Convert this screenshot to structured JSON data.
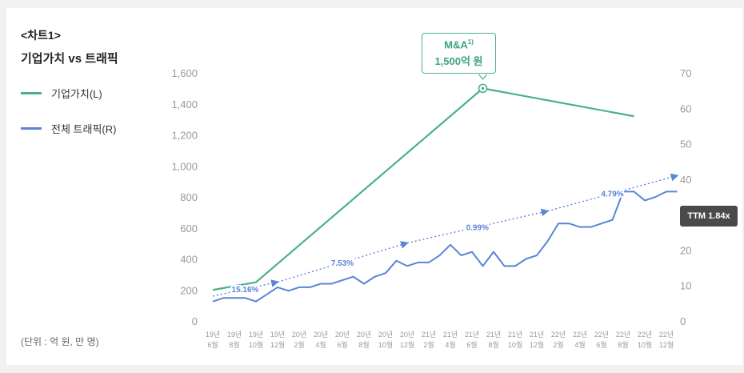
{
  "chart_data": {
    "type": "line",
    "chart_label": "<차트1>",
    "title": "기업가치 vs 트래픽",
    "unit_note": "(단위 : 억 원, 만 명)",
    "x_labels": [
      [
        "19년",
        "6월"
      ],
      [
        "19년",
        "8월"
      ],
      [
        "19년",
        "10월"
      ],
      [
        "19년",
        "12월"
      ],
      [
        "20년",
        "2월"
      ],
      [
        "20년",
        "4월"
      ],
      [
        "20년",
        "6월"
      ],
      [
        "20년",
        "8월"
      ],
      [
        "20년",
        "10월"
      ],
      [
        "20년",
        "12월"
      ],
      [
        "21년",
        "2월"
      ],
      [
        "21년",
        "4월"
      ],
      [
        "21년",
        "6월"
      ],
      [
        "21년",
        "8월"
      ],
      [
        "21년",
        "10월"
      ],
      [
        "21년",
        "12월"
      ],
      [
        "22년",
        "2월"
      ],
      [
        "22년",
        "4월"
      ],
      [
        "22년",
        "6월"
      ],
      [
        "22년",
        "8월"
      ],
      [
        "22년",
        "10월"
      ],
      [
        "22년",
        "12월"
      ]
    ],
    "left_axis": {
      "min": 0,
      "max": 1600,
      "ticks": [
        "0",
        "200",
        "400",
        "600",
        "800",
        "1,000",
        "1,200",
        "1,400",
        "1,600"
      ]
    },
    "right_axis": {
      "min": 0,
      "max": 70,
      "ticks": [
        "0",
        "10",
        "20",
        "30",
        "40",
        "50",
        "60",
        "70"
      ]
    },
    "series": [
      {
        "name": "기업가치(L)",
        "axis": "left",
        "color": "#4bb08a",
        "points": [
          [
            0,
            200
          ],
          [
            2,
            250
          ],
          [
            12.5,
            1500
          ],
          [
            19.5,
            1320
          ]
        ]
      },
      {
        "name": "전체 트래픽(R)",
        "axis": "right",
        "color": "#5b84d6",
        "points": [
          [
            0,
            5.5
          ],
          [
            0.5,
            6.5
          ],
          [
            1,
            6.5
          ],
          [
            1.5,
            6.5
          ],
          [
            2,
            5.5
          ],
          [
            2.5,
            7.5
          ],
          [
            3,
            9.5
          ],
          [
            3.5,
            8.5
          ],
          [
            4,
            9.5
          ],
          [
            4.5,
            9.5
          ],
          [
            5,
            10.5
          ],
          [
            5.5,
            10.5
          ],
          [
            6,
            11.5
          ],
          [
            6.5,
            12.5
          ],
          [
            7,
            10.5
          ],
          [
            7.5,
            12.5
          ],
          [
            8,
            13.5
          ],
          [
            8.5,
            17
          ],
          [
            9,
            15.5
          ],
          [
            9.5,
            16.5
          ],
          [
            10,
            16.5
          ],
          [
            10.5,
            18.5
          ],
          [
            11,
            21.5
          ],
          [
            11.5,
            18.5
          ],
          [
            12,
            19.5
          ],
          [
            12.5,
            15.5
          ],
          [
            13,
            19.5
          ],
          [
            13.5,
            15.5
          ],
          [
            14,
            15.5
          ],
          [
            14.5,
            17.5
          ],
          [
            15,
            18.5
          ],
          [
            15.5,
            22.5
          ],
          [
            16,
            27.5
          ],
          [
            16.5,
            27.5
          ],
          [
            17,
            26.5
          ],
          [
            17.5,
            26.5
          ],
          [
            18,
            27.5
          ],
          [
            18.5,
            28.5
          ],
          [
            19,
            36.5
          ],
          [
            19.5,
            36.5
          ],
          [
            20,
            34
          ],
          [
            20.5,
            35
          ],
          [
            21,
            36.5
          ],
          [
            21.5,
            36.5
          ]
        ]
      }
    ],
    "trend_segments": [
      {
        "label": "15.16%",
        "from": [
          0,
          7
        ],
        "to": [
          3,
          11
        ]
      },
      {
        "label": "7.53%",
        "from": [
          3,
          11
        ],
        "to": [
          9,
          22
        ]
      },
      {
        "label": "0.99%",
        "from": [
          9,
          22
        ],
        "to": [
          15.5,
          31
        ]
      },
      {
        "label": "4.79%",
        "from": [
          15.5,
          31
        ],
        "to": [
          21.5,
          41
        ]
      }
    ],
    "annotations": {
      "callout": {
        "label": "M&A",
        "footnote": "1)",
        "value": "1,500억 원",
        "at": [
          12.5,
          1500
        ]
      },
      "ttm_badge": "TTM 1.84x"
    },
    "colors": {
      "valuation": "#4bb08a",
      "traffic": "#5b84d6",
      "axis_text": "#999999",
      "badge_bg": "#4a4a4a"
    },
    "grid": false,
    "legend_position": "top-left"
  }
}
